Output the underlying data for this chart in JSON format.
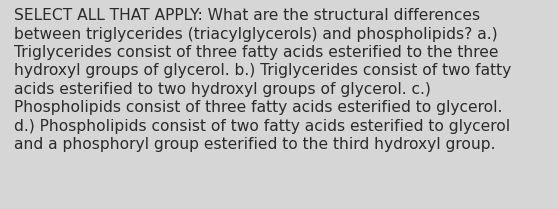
{
  "background_color": "#d6d6d6",
  "text_color": "#2b2b2b",
  "lines": [
    "SELECT ALL THAT APPLY: What are the structural differences",
    "between triglycerides (triacylglycerols) and phospholipids? a.)",
    "Triglycerides consist of three fatty acids esterified to the three",
    "hydroxyl groups of glycerol. b.) Triglycerides consist of two fatty",
    "acids esterified to two hydroxyl groups of glycerol. c.)",
    "Phospholipids consist of three fatty acids esterified to glycerol.",
    "d.) Phospholipids consist of two fatty acids esterified to glycerol",
    "and a phosphoryl group esterified to the third hydroxyl group."
  ],
  "font_size": 11.2,
  "font_family": "DejaVu Sans",
  "fig_width": 5.58,
  "fig_height": 2.09,
  "dpi": 100
}
